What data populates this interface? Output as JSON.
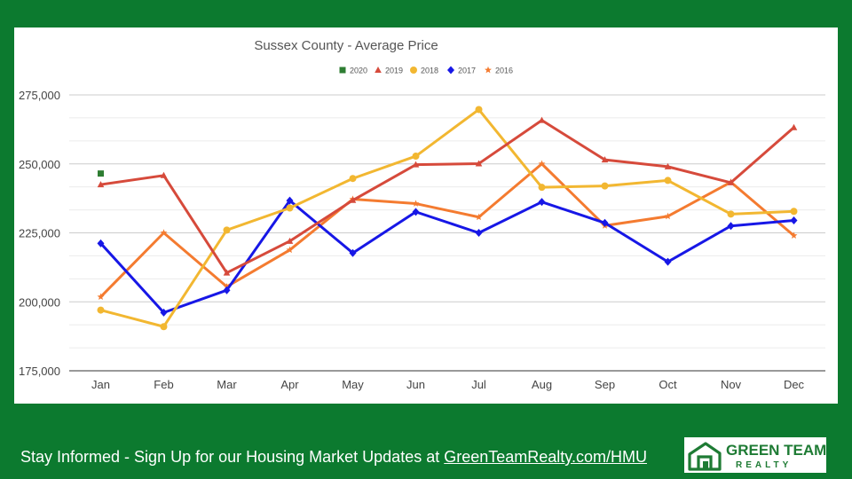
{
  "footer": {
    "text": "Stay Informed - Sign Up for our Housing Market Updates at ",
    "link": "GreenTeamRealty.com/HMU"
  },
  "logo": {
    "line1": "GREEN TEAM",
    "line2": "REALTY"
  },
  "colors": {
    "background": "#0c7a2f",
    "logo_green": "#1e7b34"
  },
  "chart_data": {
    "type": "line",
    "title": "Sussex County - Average Price",
    "xlabel": "",
    "ylabel": "",
    "categories": [
      "Jan",
      "Feb",
      "Mar",
      "Apr",
      "May",
      "Jun",
      "Jul",
      "Aug",
      "Sep",
      "Oct",
      "Nov",
      "Dec"
    ],
    "ylim": [
      175000,
      275000
    ],
    "yticks": [
      175000,
      200000,
      225000,
      250000,
      275000
    ],
    "ytick_labels": [
      "175,000",
      "200,000",
      "225,000",
      "250,000",
      "275,000"
    ],
    "grid": true,
    "legend_position": "top",
    "series": [
      {
        "name": "2020",
        "color": "#2e7d32",
        "marker": "square",
        "values": [
          246500,
          null,
          null,
          null,
          null,
          null,
          null,
          null,
          null,
          null,
          null,
          null
        ]
      },
      {
        "name": "2019",
        "color": "#d64a3b",
        "marker": "triangle",
        "values": [
          242500,
          245800,
          210500,
          222000,
          236800,
          249700,
          250100,
          265800,
          251500,
          249000,
          243200,
          263200
        ]
      },
      {
        "name": "2018",
        "color": "#f2b731",
        "marker": "circle",
        "values": [
          197000,
          191000,
          226000,
          234000,
          244700,
          252800,
          269700,
          241500,
          242000,
          244000,
          231800,
          232800
        ]
      },
      {
        "name": "2017",
        "color": "#1717e6",
        "marker": "diamond",
        "values": [
          221200,
          196100,
          204200,
          236700,
          217700,
          232600,
          225000,
          236200,
          228600,
          214500,
          227500,
          229500
        ]
      },
      {
        "name": "2016",
        "color": "#f47b30",
        "marker": "star",
        "values": [
          201800,
          225000,
          205500,
          218800,
          237200,
          235600,
          230700,
          250000,
          227600,
          231000,
          243400,
          224000
        ]
      }
    ]
  }
}
